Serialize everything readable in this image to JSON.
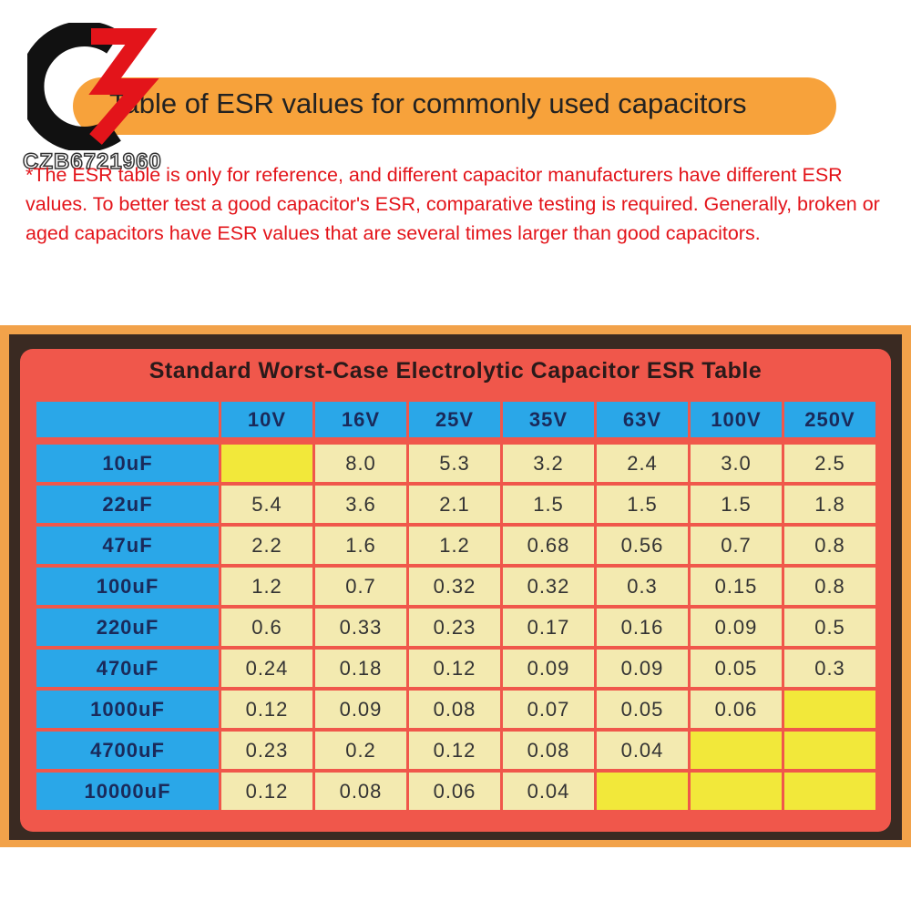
{
  "logo": {
    "text": "CZB6721960"
  },
  "header": {
    "title": "Table of ESR values for commonly used capacitors"
  },
  "note": "*The ESR table is only for reference, and different capacitor manufacturers have different ESR values. To better test a good capacitor's ESR, comparative testing is required. Generally, broken or aged capacitors have ESR values that are several times larger than good capacitors.",
  "table": {
    "title": "Standard Worst-Case Electrolytic Capacitor ESR Table",
    "columns": [
      "10V",
      "16V",
      "25V",
      "35V",
      "63V",
      "100V",
      "250V"
    ],
    "rows": [
      {
        "label": "10uF",
        "cells": [
          null,
          "8.0",
          "5.3",
          "3.2",
          "2.4",
          "3.0",
          "2.5"
        ]
      },
      {
        "label": "22uF",
        "cells": [
          "5.4",
          "3.6",
          "2.1",
          "1.5",
          "1.5",
          "1.5",
          "1.8"
        ]
      },
      {
        "label": "47uF",
        "cells": [
          "2.2",
          "1.6",
          "1.2",
          "0.68",
          "0.56",
          "0.7",
          "0.8"
        ]
      },
      {
        "label": "100uF",
        "cells": [
          "1.2",
          "0.7",
          "0.32",
          "0.32",
          "0.3",
          "0.15",
          "0.8"
        ]
      },
      {
        "label": "220uF",
        "cells": [
          "0.6",
          "0.33",
          "0.23",
          "0.17",
          "0.16",
          "0.09",
          "0.5"
        ]
      },
      {
        "label": "470uF",
        "cells": [
          "0.24",
          "0.18",
          "0.12",
          "0.09",
          "0.09",
          "0.05",
          "0.3"
        ]
      },
      {
        "label": "1000uF",
        "cells": [
          "0.12",
          "0.09",
          "0.08",
          "0.07",
          "0.05",
          "0.06",
          null
        ]
      },
      {
        "label": "4700uF",
        "cells": [
          "0.23",
          "0.2",
          "0.12",
          "0.08",
          "0.04",
          null,
          null
        ]
      },
      {
        "label": "10000uF",
        "cells": [
          "0.12",
          "0.08",
          "0.06",
          "0.04",
          null,
          null,
          null
        ]
      }
    ]
  }
}
